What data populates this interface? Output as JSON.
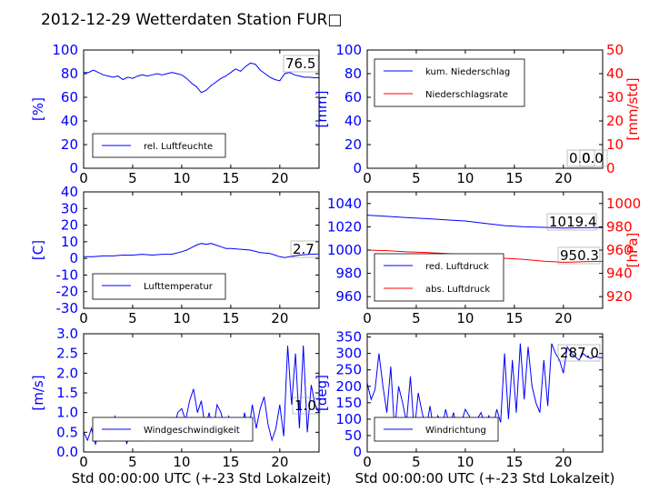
{
  "figure": {
    "title": "2012-12-29 Wetterdaten Station FUR□",
    "xlabel": "Std 00:00:00 UTC (+-23 Std Lokalzeit)"
  },
  "chart_data": [
    {
      "id": "humidity",
      "type": "line",
      "xlim": [
        0,
        24
      ],
      "ylim": [
        0,
        100
      ],
      "yticks": [
        0,
        20,
        40,
        60,
        80,
        100
      ],
      "xticks": [
        0,
        5,
        10,
        15,
        20
      ],
      "ylabel": "[%]",
      "ylabel_color": "#0000ff",
      "current_value": "76.5",
      "legend_position": "lower-left",
      "series": [
        {
          "name": "rel. Luftfeuchte",
          "color": "#0000ff",
          "x": [
            0,
            0.5,
            1,
            1.5,
            2,
            2.5,
            3,
            3.5,
            4,
            4.5,
            5,
            5.5,
            6,
            6.5,
            7,
            7.5,
            8,
            8.5,
            9,
            9.5,
            10,
            10.5,
            11,
            11.5,
            12,
            12.5,
            13,
            13.5,
            14,
            14.5,
            15,
            15.5,
            16,
            16.5,
            17,
            17.5,
            18,
            18.5,
            19,
            19.5,
            20,
            20.5,
            21,
            21.5,
            22,
            22.5,
            23,
            23.5,
            24
          ],
          "y": [
            81,
            81,
            83,
            81,
            79,
            78,
            77,
            78,
            75,
            77,
            76,
            78,
            79,
            78,
            79,
            80,
            79,
            80,
            81,
            80,
            79,
            76,
            72,
            69,
            64,
            66,
            70,
            73,
            76,
            78,
            81,
            84,
            82,
            86,
            89,
            88,
            83,
            80,
            77,
            75,
            74,
            80,
            81,
            79,
            78,
            77,
            77,
            76.5,
            76.5
          ]
        }
      ]
    },
    {
      "id": "precip",
      "type": "line",
      "xlim": [
        0,
        24
      ],
      "ylim": [
        0,
        100
      ],
      "yticks": [
        0,
        20,
        40,
        60,
        80,
        100
      ],
      "xticks": [
        0,
        5,
        10,
        15,
        20
      ],
      "ylabel": "[mm]",
      "ylabel_color": "#0000ff",
      "y2lim": [
        0,
        50
      ],
      "y2ticks": [
        0,
        10,
        20,
        30,
        40,
        50
      ],
      "y2label": "[mm/std]",
      "y2label_color": "#ff0000",
      "current_value": "0.0",
      "current_value_2": "0.0",
      "legend_position": "upper-left",
      "series": [
        {
          "name": "kum. Niederschlag",
          "color": "#0000ff",
          "axis": "left",
          "x": [
            0,
            24
          ],
          "y": [
            0,
            0
          ]
        },
        {
          "name": "Niederschlagsrate",
          "color": "#ff0000",
          "axis": "right",
          "x": [
            0,
            24
          ],
          "y": [
            0,
            0
          ]
        }
      ]
    },
    {
      "id": "temperature",
      "type": "line",
      "xlim": [
        0,
        24
      ],
      "ylim": [
        -30,
        40
      ],
      "yticks": [
        -30,
        -20,
        -10,
        0,
        10,
        20,
        30,
        40
      ],
      "xticks": [
        0,
        5,
        10,
        15,
        20
      ],
      "ylabel": "[C]",
      "ylabel_color": "#0000ff",
      "current_value": "2.7",
      "legend_position": "lower-left",
      "series": [
        {
          "name": "Lufttemperatur",
          "color": "#0000ff",
          "x": [
            0,
            1,
            2,
            3,
            4,
            5,
            6,
            7,
            8,
            9,
            10,
            10.5,
            11,
            11.5,
            12,
            12.5,
            13,
            13.5,
            14,
            14.5,
            15,
            16,
            17,
            18,
            19,
            19.5,
            20,
            20.5,
            21,
            21.5,
            22,
            23,
            24
          ],
          "y": [
            1,
            1,
            1.5,
            1.5,
            2,
            2,
            2.5,
            2,
            2.5,
            2.5,
            4,
            5,
            6.5,
            8,
            9,
            8.5,
            9,
            8,
            7,
            6,
            6,
            5.5,
            5,
            3.5,
            3,
            2,
            1,
            0.5,
            1,
            1.5,
            2,
            2.5,
            2.7
          ]
        }
      ]
    },
    {
      "id": "pressure",
      "type": "line",
      "xlim": [
        0,
        24
      ],
      "ylim": [
        950,
        1050
      ],
      "yticks": [
        960,
        980,
        1000,
        1020,
        1040
      ],
      "xticks": [
        0,
        5,
        10,
        15,
        20
      ],
      "y2lim": [
        910,
        1010
      ],
      "y2ticks": [
        920,
        940,
        960,
        980,
        1000
      ],
      "y2label": "[hPa]",
      "y2label_color": "#ff0000",
      "current_value": "1019.4",
      "current_value_2": "950.3",
      "legend_position": "lower-left",
      "series": [
        {
          "name": "red. Luftdruck",
          "color": "#0000ff",
          "axis": "left",
          "x": [
            0,
            2,
            4,
            6,
            8,
            10,
            12,
            14,
            16,
            18,
            20,
            22,
            24
          ],
          "y": [
            1030,
            1029,
            1028,
            1027,
            1026,
            1025,
            1023,
            1021,
            1020,
            1019.5,
            1019,
            1019.2,
            1019.4
          ]
        },
        {
          "name": "abs. Luftdruck",
          "color": "#ff0000",
          "axis": "right",
          "x": [
            0,
            2,
            4,
            6,
            8,
            10,
            12,
            14,
            16,
            18,
            20,
            22,
            24
          ],
          "y": [
            960,
            959.5,
            958.5,
            958,
            957,
            956,
            954.5,
            953,
            952,
            950.5,
            949.5,
            950,
            950.3
          ]
        }
      ]
    },
    {
      "id": "windspeed",
      "type": "line",
      "xlim": [
        0,
        24
      ],
      "ylim": [
        0,
        3.0
      ],
      "yticks": [
        0.0,
        0.5,
        1.0,
        1.5,
        2.0,
        2.5,
        3.0
      ],
      "xticks": [
        0,
        5,
        10,
        15,
        20
      ],
      "ylabel": "[m/s]",
      "ylabel_color": "#0000ff",
      "xlabel": "Std 00:00:00 UTC (+-23 Std Lokalzeit)",
      "current_value": "1.0",
      "legend_position": "lower-left",
      "series": [
        {
          "name": "Windgeschwindigkeit",
          "color": "#0000ff",
          "x": [
            0,
            0.4,
            0.8,
            1.2,
            1.6,
            2,
            2.4,
            2.8,
            3.2,
            3.6,
            4,
            4.4,
            4.8,
            5.2,
            5.6,
            6,
            6.4,
            6.8,
            7.2,
            7.6,
            8,
            8.4,
            8.8,
            9.2,
            9.6,
            10,
            10.4,
            10.8,
            11.2,
            11.6,
            12,
            12.4,
            12.8,
            13.2,
            13.6,
            14,
            14.4,
            14.8,
            15.2,
            15.6,
            16,
            16.4,
            16.8,
            17.2,
            17.6,
            18,
            18.4,
            18.8,
            19.2,
            19.6,
            20,
            20.4,
            20.8,
            21.2,
            21.6,
            22,
            22.4,
            22.8,
            23.2,
            23.6,
            24
          ],
          "y": [
            0.5,
            0.3,
            0.6,
            0.2,
            0.5,
            0.8,
            0.3,
            0.6,
            0.9,
            0.4,
            0.7,
            0.2,
            0.6,
            0.5,
            0.8,
            0.3,
            0.6,
            0.4,
            0.7,
            0.3,
            0.5,
            0.7,
            0.4,
            0.6,
            1.0,
            1.1,
            0.8,
            1.3,
            1.6,
            1.0,
            1.3,
            0.6,
            1.0,
            0.5,
            1.2,
            1.0,
            0.6,
            0.9,
            0.4,
            0.8,
            0.3,
            1.0,
            0.5,
            1.2,
            0.6,
            1.1,
            1.4,
            0.7,
            0.3,
            0.6,
            1.2,
            0.4,
            2.7,
            1.2,
            2.5,
            0.6,
            2.7,
            0.5,
            1.7,
            1.2,
            1.0
          ]
        }
      ]
    },
    {
      "id": "winddir",
      "type": "line",
      "xlim": [
        0,
        24
      ],
      "ylim": [
        0,
        360
      ],
      "yticks": [
        0,
        50,
        100,
        150,
        200,
        250,
        300,
        350
      ],
      "xticks": [
        0,
        5,
        10,
        15,
        20
      ],
      "ylabel": "[deg]",
      "ylabel_color": "#0000ff",
      "xlabel": "Std 00:00:00 UTC (+-23 Std Lokalzeit)",
      "current_value": "287.0",
      "legend_position": "lower-left",
      "series": [
        {
          "name": "Windrichtung",
          "color": "#0000ff",
          "x": [
            0,
            0.4,
            0.8,
            1.2,
            1.6,
            2,
            2.4,
            2.8,
            3.2,
            3.6,
            4,
            4.4,
            4.8,
            5.2,
            5.6,
            6,
            6.4,
            6.8,
            7.2,
            7.6,
            8,
            8.4,
            8.8,
            9.2,
            9.6,
            10,
            10.4,
            10.8,
            11.2,
            11.6,
            12,
            12.4,
            12.8,
            13.2,
            13.6,
            14,
            14.4,
            14.8,
            15.2,
            15.6,
            16,
            16.4,
            16.8,
            17.2,
            17.6,
            18,
            18.4,
            18.8,
            19.2,
            19.6,
            20,
            20.4,
            20.8,
            21.2,
            21.6,
            22,
            22.4,
            22.8,
            23.2,
            23.6,
            24
          ],
          "y": [
            210,
            160,
            190,
            300,
            200,
            120,
            260,
            60,
            200,
            150,
            90,
            230,
            60,
            180,
            120,
            70,
            140,
            60,
            110,
            70,
            130,
            80,
            120,
            60,
            90,
            130,
            110,
            70,
            100,
            120,
            80,
            110,
            70,
            130,
            90,
            300,
            100,
            280,
            120,
            330,
            160,
            320,
            200,
            150,
            120,
            280,
            140,
            330,
            300,
            280,
            240,
            320,
            300,
            290,
            280,
            300,
            290,
            285,
            290,
            288,
            287
          ]
        }
      ]
    }
  ]
}
